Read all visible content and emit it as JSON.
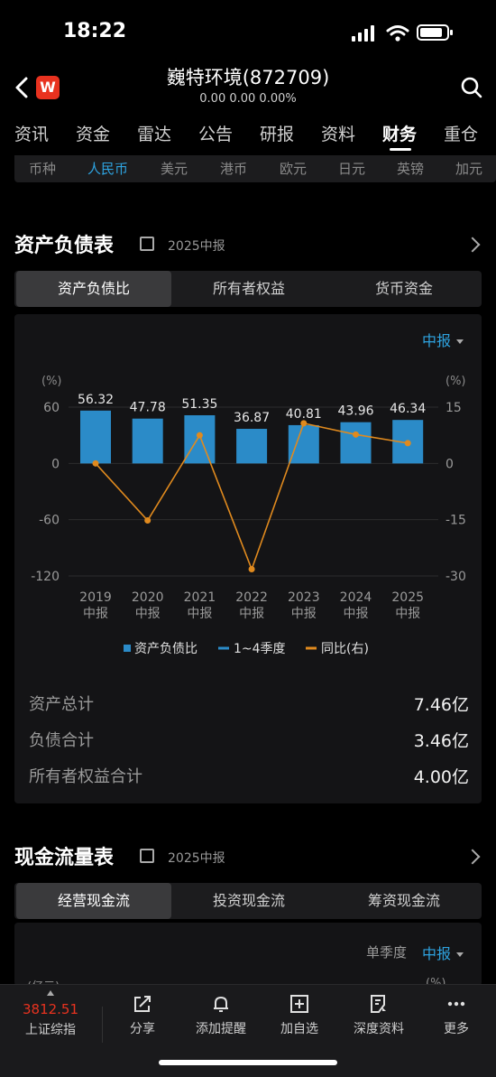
{
  "status_bar": {
    "time": "18:22"
  },
  "header": {
    "title": "巍特环境(872709)",
    "quote": "0.00  0.00  0.00%",
    "logo_text": "W",
    "icons": [
      "back-icon",
      "search-icon"
    ]
  },
  "tabs": [
    "资讯",
    "资金",
    "雷达",
    "公告",
    "研报",
    "资料",
    "财务",
    "重仓"
  ],
  "active_tab": "财务",
  "currencies": [
    "币种",
    "人民币",
    "美元",
    "港币",
    "欧元",
    "日元",
    "英镑",
    "加元"
  ],
  "active_currency": "人民币",
  "balance": {
    "title": "资产负债表",
    "period": "2025中报",
    "segments": [
      "资产负债比",
      "所有者权益",
      "货币资金"
    ],
    "active_segment": "资产负债比",
    "period_select": "中报",
    "summary": [
      {
        "label": "资产总计",
        "value": "7.46亿"
      },
      {
        "label": "负债合计",
        "value": "3.46亿"
      },
      {
        "label": "所有者权益合计",
        "value": "4.00亿"
      }
    ]
  },
  "chart_data": {
    "type": "bar",
    "categories": [
      "2019\n中报",
      "2020\n中报",
      "2021\n中报",
      "2022\n中报",
      "2023\n中报",
      "2024\n中报",
      "2025\n中报"
    ],
    "category_years": [
      "2019",
      "2020",
      "2021",
      "2022",
      "2023",
      "2024",
      "2025"
    ],
    "category_suffix": "中报",
    "series": [
      {
        "name": "资产负债比",
        "type": "bar",
        "axis": "left",
        "values": [
          56.32,
          47.78,
          51.35,
          36.87,
          40.81,
          43.96,
          46.34
        ],
        "labels": [
          "56.32",
          "47.78",
          "51.35",
          "36.87",
          "40.81",
          "43.96",
          "46.34"
        ],
        "color": "#2b8bc8"
      },
      {
        "name": "1~4季度",
        "type": "legend-only",
        "color": "#2b8bc8"
      },
      {
        "name": "同比(右)",
        "type": "line",
        "axis": "right",
        "values": [
          0,
          -15.2,
          7.5,
          -28.2,
          10.7,
          7.7,
          5.4
        ],
        "color": "#e08a1e"
      }
    ],
    "left_axis": {
      "unit": "(%)",
      "ticks": [
        60,
        0,
        -60,
        -120
      ],
      "tick_labels": [
        "60",
        "0",
        "-60",
        "-120"
      ],
      "range": [
        -120,
        60
      ]
    },
    "right_axis": {
      "unit": "(%)",
      "ticks": [
        15,
        0,
        -15,
        -30
      ],
      "tick_labels": [
        "15",
        "0",
        "-15",
        "-30"
      ],
      "range": [
        -30,
        15
      ]
    },
    "grid": true,
    "legend": "bottom"
  },
  "cashflow": {
    "title": "现金流量表",
    "period": "2025中报",
    "segments": [
      "经营现金流",
      "投资现金流",
      "筹资现金流"
    ],
    "active_segment": "经营现金流",
    "quarter_label": "单季度",
    "period_select": "中报",
    "left_unit": "(亿元)",
    "right_unit": "(%)"
  },
  "bottom_nav": {
    "index_value": "3812.51",
    "index_name": "上证综指",
    "items": [
      {
        "label": "分享",
        "icon": "share-icon"
      },
      {
        "label": "添加提醒",
        "icon": "bell-icon"
      },
      {
        "label": "加自选",
        "icon": "add-watchlist-icon"
      },
      {
        "label": "深度资料",
        "icon": "document-icon"
      },
      {
        "label": "更多",
        "icon": "more-icon"
      }
    ]
  },
  "colors": {
    "accent": "#2ea3e0",
    "bar": "#2b8bc8",
    "line": "#e08a1e",
    "index_red": "#e8321f"
  }
}
